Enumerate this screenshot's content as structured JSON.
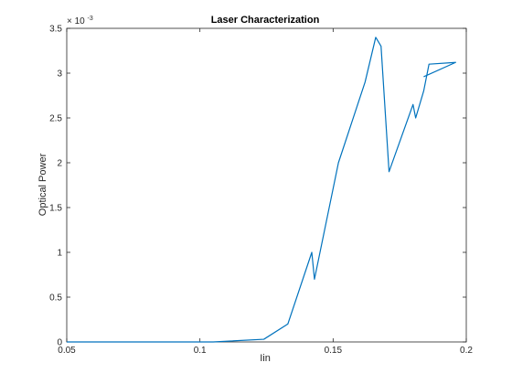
{
  "chart_data": {
    "type": "line",
    "title": "Laser Characterization",
    "xlabel": "Iin",
    "ylabel": "Optical Power",
    "xlim": [
      0.05,
      0.2
    ],
    "ylim": [
      0,
      0.0035
    ],
    "y_exponent_base": "× 10",
    "y_exponent_power": "-3",
    "x_ticks": [
      0.05,
      0.1,
      0.15,
      0.2
    ],
    "x_tick_labels": [
      "0.05",
      "0.1",
      "0.15",
      "0.2"
    ],
    "y_ticks": [
      0,
      0.0005,
      0.001,
      0.0015,
      0.002,
      0.0025,
      0.003,
      0.0035
    ],
    "y_tick_labels": [
      "0",
      "0.5",
      "1",
      "1.5",
      "2",
      "2.5",
      "3",
      "3.5"
    ],
    "grid": false,
    "series": [
      {
        "color": "#0072bd",
        "x": [
          0.05,
          0.1,
          0.105,
          0.124,
          0.133,
          0.142,
          0.143,
          0.152,
          0.162,
          0.166,
          0.168,
          0.171,
          0.18,
          0.181,
          0.184,
          0.186,
          0.196,
          0.184
        ],
        "y": [
          0,
          0,
          0,
          3e-05,
          0.0002,
          0.001,
          0.0007,
          0.002,
          0.0029,
          0.0034,
          0.0033,
          0.0019,
          0.00265,
          0.0025,
          0.0028,
          0.0031,
          0.00312,
          0.00296
        ]
      }
    ]
  }
}
